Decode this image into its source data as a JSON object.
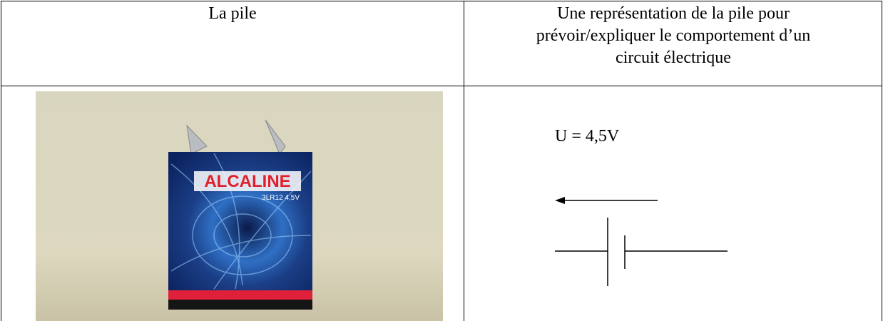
{
  "table": {
    "header": [
      "La pile",
      "Une représentation de la pile pour prévoir/expliquer le comportement d’un circuit électrique"
    ]
  },
  "photo": {
    "brand": "ALCALINE",
    "model": "3LR12 4,5V"
  },
  "diagram": {
    "label": "U = 4,5V"
  }
}
